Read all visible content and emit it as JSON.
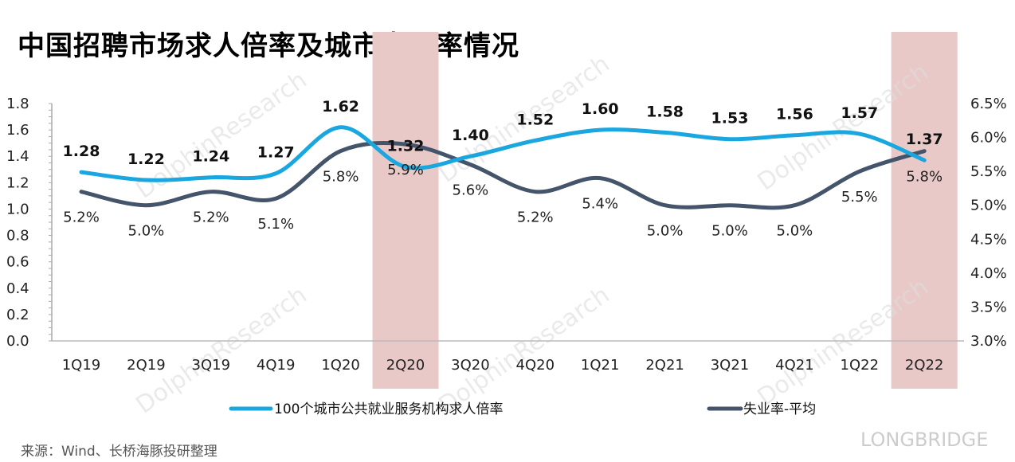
{
  "title": "中国招聘市场求人倍率及城市失业率情况",
  "source": "来源：Wind、长桥海豚投研整理",
  "watermark": "LONGBRIDGE DolphinResearch",
  "chart_data": {
    "type": "line",
    "title": "中国招聘市场求人倍率及城市失业率情况",
    "categories": [
      "1Q19",
      "2Q19",
      "3Q19",
      "4Q19",
      "1Q20",
      "2Q20",
      "3Q20",
      "4Q20",
      "1Q21",
      "2Q21",
      "3Q21",
      "4Q21",
      "1Q22",
      "2Q22"
    ],
    "highlighted_categories": [
      "2Q20",
      "2Q22"
    ],
    "series": [
      {
        "name": "100个城市公共就业服务机构求人倍率",
        "axis": "left",
        "color": "#1aa7e0",
        "values": [
          1.28,
          1.22,
          1.24,
          1.27,
          1.62,
          1.32,
          1.4,
          1.52,
          1.6,
          1.58,
          1.53,
          1.56,
          1.57,
          1.37
        ],
        "labels": [
          "1.28",
          "1.22",
          "1.24",
          "1.27",
          "1.62",
          "1.32",
          "1.40",
          "1.52",
          "1.60",
          "1.58",
          "1.53",
          "1.56",
          "1.57",
          "1.37"
        ]
      },
      {
        "name": "失业率-平均",
        "axis": "right",
        "color": "#44546a",
        "values": [
          5.2,
          5.0,
          5.2,
          5.1,
          5.8,
          5.9,
          5.6,
          5.2,
          5.4,
          5.0,
          5.0,
          5.0,
          5.5,
          5.8
        ],
        "labels": [
          "5.2%",
          "5.0%",
          "5.2%",
          "5.1%",
          "5.8%",
          "5.9%",
          "5.6%",
          "5.2%",
          "5.4%",
          "5.0%",
          "5.0%",
          "5.0%",
          "5.5%",
          "5.8%"
        ]
      }
    ],
    "left_axis": {
      "ylim": [
        0,
        1.8
      ],
      "ticks": [
        "0.0",
        "0.2",
        "0.4",
        "0.6",
        "0.8",
        "1.0",
        "1.2",
        "1.4",
        "1.6",
        "1.8"
      ]
    },
    "right_axis": {
      "ylim": [
        3.0,
        6.5
      ],
      "ticks": [
        "3.0%",
        "3.5%",
        "4.0%",
        "4.5%",
        "5.0%",
        "5.5%",
        "6.0%",
        "6.5%"
      ]
    },
    "highlight_color": "#e8c9c8",
    "legend_placement": "bottom",
    "grid": false
  }
}
